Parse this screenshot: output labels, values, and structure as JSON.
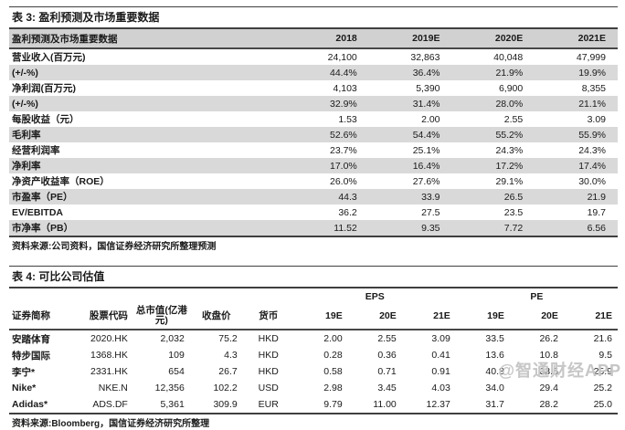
{
  "page": {
    "watermark": "@智通财经APP"
  },
  "colors": {
    "header_bg": "#d1d1d1",
    "stripe_bg": "#d9d9d9",
    "rule_dark": "#3f3f3f",
    "text": "#1a1a1a",
    "watermark": "#c6c6c6"
  },
  "table3": {
    "title": "表 3: 盈利预测及市场重要数据",
    "header": {
      "label": "盈利预测及市场重要数据",
      "years": [
        "2018",
        "2019E",
        "2020E",
        "2021E"
      ]
    },
    "rows": [
      {
        "label": "营业收入(百万元)",
        "values": [
          "24,100",
          "32,863",
          "40,048",
          "47,999"
        ]
      },
      {
        "label": "(+/-%)",
        "values": [
          "44.4%",
          "36.4%",
          "21.9%",
          "19.9%"
        ]
      },
      {
        "label": "净利润(百万元)",
        "values": [
          "4,103",
          "5,390",
          "6,900",
          "8,355"
        ]
      },
      {
        "label": "(+/-%)",
        "values": [
          "32.9%",
          "31.4%",
          "28.0%",
          "21.1%"
        ]
      },
      {
        "label": "每股收益（元）",
        "values": [
          "1.53",
          "2.00",
          "2.55",
          "3.09"
        ]
      },
      {
        "label": "毛利率",
        "values": [
          "52.6%",
          "54.4%",
          "55.2%",
          "55.9%"
        ]
      },
      {
        "label": "经营利润率",
        "values": [
          "23.7%",
          "25.1%",
          "24.3%",
          "24.3%"
        ]
      },
      {
        "label": "净利率",
        "values": [
          "17.0%",
          "16.4%",
          "17.2%",
          "17.4%"
        ]
      },
      {
        "label": "净资产收益率（ROE）",
        "values": [
          "26.0%",
          "27.6%",
          "29.1%",
          "30.0%"
        ]
      },
      {
        "label": "市盈率（PE）",
        "values": [
          "44.3",
          "33.9",
          "26.5",
          "21.9"
        ]
      },
      {
        "label": "EV/EBITDA",
        "values": [
          "36.2",
          "27.5",
          "23.5",
          "19.7"
        ]
      },
      {
        "label": "市净率（PB）",
        "values": [
          "11.52",
          "9.35",
          "7.72",
          "6.56"
        ]
      }
    ],
    "source": "资料来源:公司资料，国信证券经济研究所整理预测"
  },
  "table4": {
    "title": "表 4: 可比公司估值",
    "group_headers": {
      "eps": "EPS",
      "pe": "PE"
    },
    "columns": [
      "证券简称",
      "股票代码",
      "总市值(亿港元)",
      "收盘价",
      "货币",
      "19E",
      "20E",
      "21E",
      "19E",
      "20E",
      "21E"
    ],
    "rows": [
      [
        "安踏体育",
        "2020.HK",
        "2,032",
        "75.2",
        "HKD",
        "2.00",
        "2.55",
        "3.09",
        "33.5",
        "26.2",
        "21.6"
      ],
      [
        "特步国际",
        "1368.HK",
        "109",
        "4.3",
        "HKD",
        "0.28",
        "0.36",
        "0.41",
        "13.6",
        "10.8",
        "9.5"
      ],
      [
        "李宁*",
        "2331.HK",
        "654",
        "26.7",
        "HKD",
        "0.58",
        "0.71",
        "0.91",
        "40.8",
        "33.5",
        "25.9"
      ],
      [
        "Nike*",
        "NKE.N",
        "12,356",
        "102.2",
        "USD",
        "2.98",
        "3.45",
        "4.03",
        "34.0",
        "29.4",
        "25.2"
      ],
      [
        "Adidas*",
        "ADS.DF",
        "5,361",
        "309.9",
        "EUR",
        "9.79",
        "11.00",
        "12.37",
        "31.7",
        "28.2",
        "25.0"
      ]
    ],
    "source": "资料来源:Bloomberg，国信证券经济研究所整理"
  }
}
